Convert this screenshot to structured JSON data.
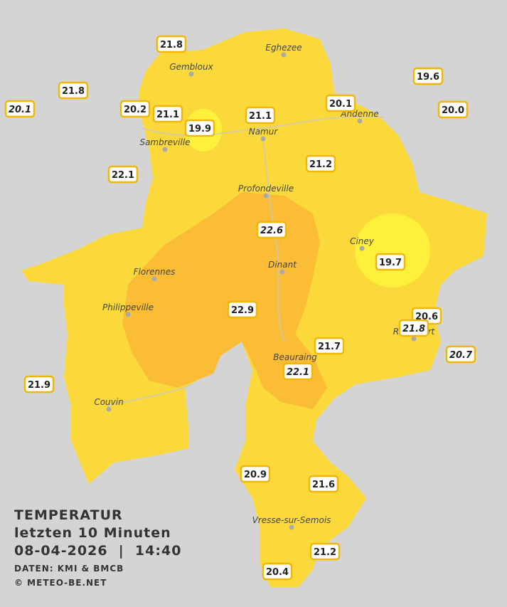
{
  "legend": {
    "title": "TEMPERATUR",
    "subtitle": "letzten 10 Minuten",
    "datetime": "08-04-2026  |  14:40",
    "source": "DATEN: KMI & BMCB",
    "copyright": "© METEO-BE.NET"
  },
  "cities": [
    "Eghezee",
    "Gembloux",
    "Andenne",
    "Namur",
    "Sambreville",
    "Profondeville",
    "Ciney",
    "Dinant",
    "Florennes",
    "Philippeville",
    "Rochefort",
    "Beauraing",
    "Couvin",
    "Vresse-sur-Semois"
  ],
  "stations": [
    "21.8",
    "21.8",
    "20.1",
    "20.2",
    "21.1",
    "19.9",
    "21.1",
    "20.1",
    "19.6",
    "20.0",
    "22.1",
    "21.2",
    "22.6",
    "19.7",
    "22.9",
    "20.6",
    "21.8",
    "21.7",
    "20.7",
    "22.1",
    "21.9",
    "20.9",
    "21.6",
    "21.2",
    "20.4"
  ]
}
